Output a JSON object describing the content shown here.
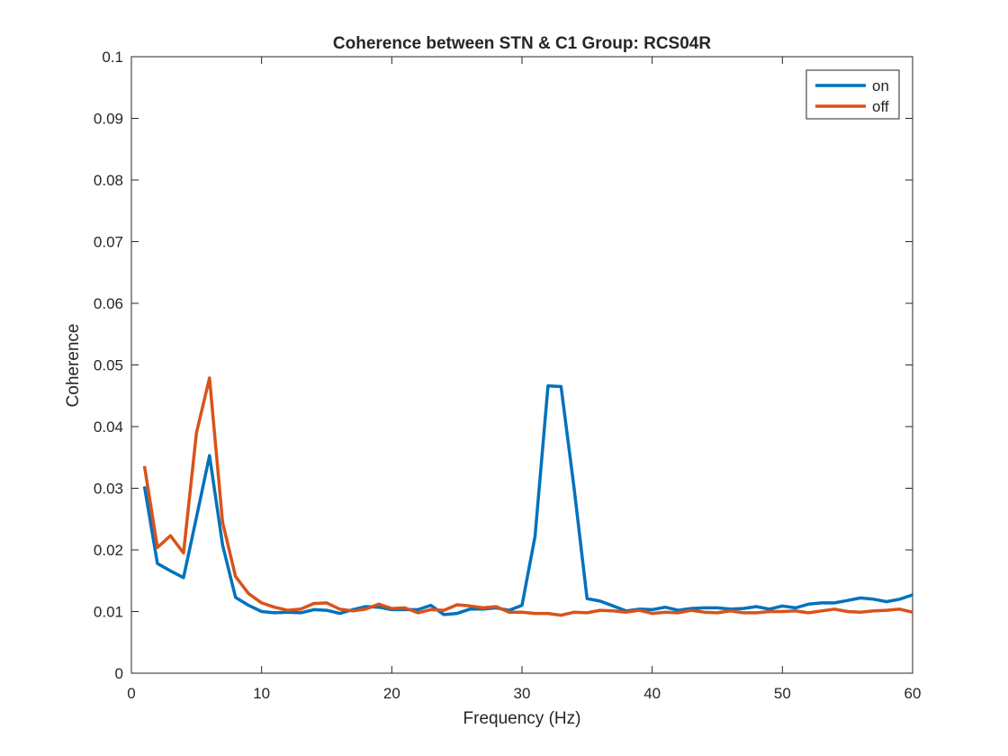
{
  "chart_data": {
    "type": "line",
    "title": "Coherence between STN & C1 Group: RCS04R",
    "xlabel": "Frequency (Hz)",
    "ylabel": "Coherence",
    "xlim": [
      0,
      60
    ],
    "ylim": [
      0,
      0.1
    ],
    "xticks": [
      0,
      10,
      20,
      30,
      40,
      50,
      60
    ],
    "xtick_labels": [
      "0",
      "10",
      "20",
      "30",
      "40",
      "50",
      "60"
    ],
    "yticks": [
      0,
      0.01,
      0.02,
      0.03,
      0.04,
      0.05,
      0.06,
      0.07,
      0.08,
      0.09,
      0.1
    ],
    "ytick_labels": [
      "0",
      "0.01",
      "0.02",
      "0.03",
      "0.04",
      "0.05",
      "0.06",
      "0.07",
      "0.08",
      "0.09",
      "0.1"
    ],
    "grid": false,
    "legend_position": "top-right",
    "x": [
      1,
      2,
      3,
      4,
      5,
      6,
      7,
      8,
      9,
      10,
      11,
      12,
      13,
      14,
      15,
      16,
      17,
      18,
      19,
      20,
      21,
      22,
      23,
      24,
      25,
      26,
      27,
      28,
      29,
      30,
      31,
      32,
      33,
      34,
      35,
      36,
      37,
      38,
      39,
      40,
      41,
      42,
      43,
      44,
      45,
      46,
      47,
      48,
      49,
      50,
      51,
      52,
      53,
      54,
      55,
      56,
      57,
      58,
      59,
      60
    ],
    "series": [
      {
        "name": "on",
        "color": "#0072BD",
        "values": [
          0.0303,
          0.0178,
          0.0166,
          0.0155,
          0.0253,
          0.0353,
          0.0208,
          0.0123,
          0.011,
          0.01,
          0.0098,
          0.0099,
          0.0098,
          0.0103,
          0.0102,
          0.0097,
          0.0103,
          0.0108,
          0.0107,
          0.0103,
          0.0103,
          0.0103,
          0.011,
          0.0095,
          0.0097,
          0.0104,
          0.0104,
          0.0106,
          0.0102,
          0.011,
          0.0222,
          0.0466,
          0.0465,
          0.03,
          0.0121,
          0.0117,
          0.0109,
          0.0101,
          0.0104,
          0.0103,
          0.0107,
          0.0102,
          0.0105,
          0.0106,
          0.0106,
          0.0104,
          0.0105,
          0.0108,
          0.0104,
          0.0109,
          0.0106,
          0.0112,
          0.0114,
          0.0114,
          0.0118,
          0.0122,
          0.012,
          0.0116,
          0.012,
          0.0127
        ]
      },
      {
        "name": "off",
        "color": "#D95319",
        "values": [
          0.0336,
          0.0204,
          0.0223,
          0.0195,
          0.039,
          0.0479,
          0.0245,
          0.0157,
          0.0129,
          0.0114,
          0.0107,
          0.0102,
          0.0104,
          0.0113,
          0.0114,
          0.0104,
          0.0101,
          0.0104,
          0.0112,
          0.0105,
          0.0106,
          0.0098,
          0.0103,
          0.0102,
          0.0111,
          0.0109,
          0.0106,
          0.0108,
          0.0099,
          0.0099,
          0.0097,
          0.0097,
          0.0094,
          0.0099,
          0.0098,
          0.0102,
          0.0101,
          0.0099,
          0.0102,
          0.0097,
          0.0099,
          0.0098,
          0.0102,
          0.0099,
          0.0098,
          0.0101,
          0.0098,
          0.0098,
          0.01,
          0.01,
          0.0101,
          0.0098,
          0.0101,
          0.0104,
          0.01,
          0.0099,
          0.0101,
          0.0102,
          0.0104,
          0.0099
        ]
      }
    ]
  }
}
